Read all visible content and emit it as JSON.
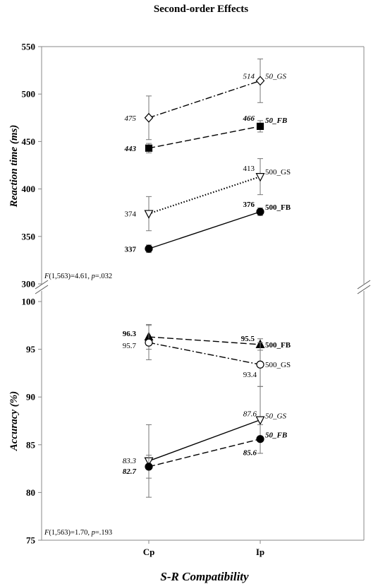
{
  "chart_data": [
    {
      "type": "line",
      "title": "Second-order Effects",
      "xlabel": "S-R Compatibility",
      "ylabel": "Reaction time (ms)",
      "categories": [
        "Cp",
        "Ip"
      ],
      "ylim": [
        300,
        550
      ],
      "yticks": [
        "300",
        "350",
        "400",
        "450",
        "500",
        "550"
      ],
      "annotation": {
        "pre": "F",
        "mid": "(1,563)=4.61, ",
        "p": "p",
        "post": "=.032"
      },
      "series": [
        {
          "name": "50_GS",
          "values": [
            475,
            514
          ],
          "value_labels": [
            "475",
            "514"
          ],
          "errors": [
            23,
            23
          ],
          "marker": "diamond-open",
          "line": "dashdot",
          "italic": true,
          "bold": false
        },
        {
          "name": "50_FB",
          "values": [
            443,
            466
          ],
          "value_labels": [
            "443",
            "466"
          ],
          "errors": [
            5,
            6
          ],
          "marker": "square-filled",
          "line": "dashed",
          "italic": true,
          "bold": true
        },
        {
          "name": "500_GS",
          "values": [
            374,
            413
          ],
          "value_labels": [
            "374",
            "413"
          ],
          "errors": [
            18,
            19
          ],
          "marker": "triangle-down-open",
          "line": "dotted",
          "italic": false,
          "bold": false
        },
        {
          "name": "500_FB",
          "values": [
            337,
            376
          ],
          "value_labels": [
            "337",
            "376"
          ],
          "errors": [
            4,
            4
          ],
          "marker": "circle-filled",
          "line": "solid",
          "italic": false,
          "bold": true
        }
      ]
    },
    {
      "type": "line",
      "xlabel": "S-R Compatibility",
      "ylabel": "Accuracy (%)",
      "categories": [
        "Cp",
        "Ip"
      ],
      "ylim": [
        75,
        100
      ],
      "yticks": [
        "75",
        "80",
        "85",
        "90",
        "95",
        "100"
      ],
      "annotation": {
        "pre": "F",
        "mid": "(1,563)=1.70, ",
        "p": "p",
        "post": "=.193"
      },
      "series": [
        {
          "name": "500_FB",
          "values": [
            96.3,
            95.5
          ],
          "value_labels": [
            "96.3",
            "95.5"
          ],
          "errors": [
            1.3,
            0.6
          ],
          "marker": "triangle-up-filled",
          "line": "dashed",
          "italic": false,
          "bold": true
        },
        {
          "name": "500_GS",
          "values": [
            95.7,
            93.4
          ],
          "value_labels": [
            "95.7",
            "93.4"
          ],
          "errors": [
            1.8,
            2.3
          ],
          "marker": "circle-open",
          "line": "dashdot",
          "italic": false,
          "bold": false
        },
        {
          "name": "50_GS",
          "values": [
            83.3,
            87.6
          ],
          "value_labels": [
            "83.3",
            "87.6"
          ],
          "errors": [
            3.8,
            3.5
          ],
          "marker": "triangle-down-open",
          "line": "solid",
          "italic": true,
          "bold": false
        },
        {
          "name": "50_FB",
          "values": [
            82.7,
            85.6
          ],
          "value_labels": [
            "82.7",
            "85.6"
          ],
          "errors": [
            1.2,
            1.5
          ],
          "marker": "circle-filled",
          "line": "dashed",
          "italic": true,
          "bold": true
        }
      ]
    }
  ]
}
